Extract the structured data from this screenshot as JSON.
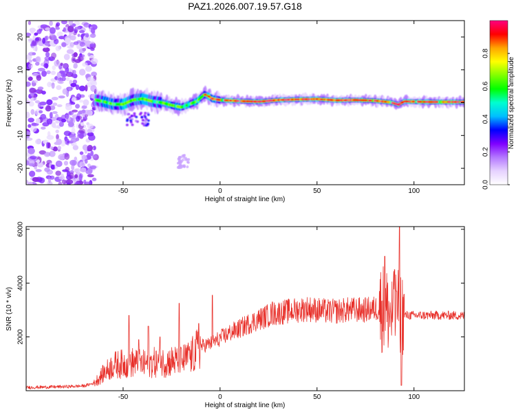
{
  "figure": {
    "title": "PAZ1.2026.007.19.57.G18"
  },
  "chart_data": [
    {
      "type": "heatmap",
      "xlabel": "Height of straight line (km)",
      "ylabel": "Frequency (Hz)",
      "xlim": [
        -100,
        126
      ],
      "ylim": [
        -25,
        25
      ],
      "xticks": [
        -50,
        0,
        50,
        100
      ],
      "yticks": [
        -20,
        -10,
        0,
        10,
        20
      ],
      "ridge": [
        [
          -64,
          0.8
        ],
        [
          -60,
          0.3
        ],
        [
          -55,
          -0.5
        ],
        [
          -50,
          -0.5
        ],
        [
          -45,
          0.8
        ],
        [
          -40,
          1.2
        ],
        [
          -35,
          0.4
        ],
        [
          -30,
          0.0
        ],
        [
          -25,
          -0.8
        ],
        [
          -20,
          -1.4
        ],
        [
          -18,
          -1.0
        ],
        [
          -15,
          -0.3
        ],
        [
          -12,
          0.4
        ],
        [
          -10,
          1.5
        ],
        [
          -8,
          2.5
        ],
        [
          -6,
          2.0
        ],
        [
          -4,
          1.2
        ],
        [
          0,
          0.8
        ],
        [
          10,
          0.5
        ],
        [
          20,
          0.3
        ],
        [
          30,
          0.8
        ],
        [
          40,
          1.0
        ],
        [
          50,
          1.1
        ],
        [
          60,
          0.7
        ],
        [
          70,
          0.8
        ],
        [
          80,
          0.6
        ],
        [
          88,
          0.1
        ],
        [
          92,
          -0.6
        ],
        [
          95,
          0.4
        ],
        [
          100,
          0.3
        ],
        [
          110,
          0.2
        ],
        [
          120,
          0.2
        ],
        [
          126,
          0.2
        ]
      ],
      "noise_region": [
        -100,
        -64
      ],
      "colorbar": {
        "label": "Normalized spectral amplitude",
        "range": [
          0,
          1
        ],
        "ticks": [
          0.0,
          0.2,
          0.4,
          0.6,
          0.8
        ],
        "colors": [
          "#ffffff",
          "#e6d2ff",
          "#b478ff",
          "#7f00ff",
          "#0000ff",
          "#00bfff",
          "#00ffd0",
          "#00ff00",
          "#80ff00",
          "#ffff00",
          "#ffa500",
          "#ff0000",
          "#ff0080"
        ]
      }
    },
    {
      "type": "line",
      "xlabel": "Height of straight line (km)",
      "ylabel": "SNR (10 * v/v)",
      "xlim": [
        -100,
        126
      ],
      "ylim": [
        0,
        6100
      ],
      "xticks": [
        -50,
        0,
        50,
        100
      ],
      "yticks": [
        2000,
        4000,
        6000
      ],
      "color": "#e8302a",
      "envelope": [
        [
          -100,
          120
        ],
        [
          -80,
          150
        ],
        [
          -70,
          180
        ],
        [
          -65,
          280
        ],
        [
          -60,
          650
        ],
        [
          -55,
          950
        ],
        [
          -50,
          1000
        ],
        [
          -45,
          1050
        ],
        [
          -40,
          980
        ],
        [
          -35,
          1050
        ],
        [
          -30,
          1050
        ],
        [
          -25,
          1100
        ],
        [
          -20,
          1100
        ],
        [
          -15,
          1250
        ],
        [
          -10,
          1650
        ],
        [
          -5,
          1750
        ],
        [
          0,
          1950
        ],
        [
          5,
          2150
        ],
        [
          10,
          2300
        ],
        [
          15,
          2500
        ],
        [
          20,
          2650
        ],
        [
          25,
          2800
        ],
        [
          30,
          2900
        ],
        [
          35,
          2950
        ],
        [
          40,
          3000
        ],
        [
          45,
          3050
        ],
        [
          50,
          3000
        ],
        [
          55,
          2950
        ],
        [
          60,
          2950
        ],
        [
          65,
          3000
        ],
        [
          70,
          3000
        ],
        [
          75,
          3000
        ],
        [
          80,
          3050
        ],
        [
          85,
          3100
        ],
        [
          88,
          2800
        ],
        [
          90,
          2900
        ],
        [
          93,
          2950
        ],
        [
          95,
          2800
        ],
        [
          100,
          2800
        ],
        [
          105,
          2800
        ],
        [
          110,
          2800
        ],
        [
          115,
          2800
        ],
        [
          120,
          2800
        ],
        [
          126,
          2780
        ]
      ],
      "spikes": [
        [
          -47,
          2800
        ],
        [
          -42,
          1900
        ],
        [
          -37,
          2400
        ],
        [
          -31,
          2000
        ],
        [
          -21,
          3250
        ],
        [
          -16,
          1500
        ],
        [
          -11,
          2500
        ],
        [
          -4,
          3550
        ],
        [
          -1,
          1700
        ],
        [
          27,
          3300
        ],
        [
          85,
          5000
        ],
        [
          90,
          4500
        ],
        [
          91,
          3700
        ],
        [
          92.5,
          6100
        ],
        [
          93.5,
          200
        ]
      ]
    }
  ]
}
